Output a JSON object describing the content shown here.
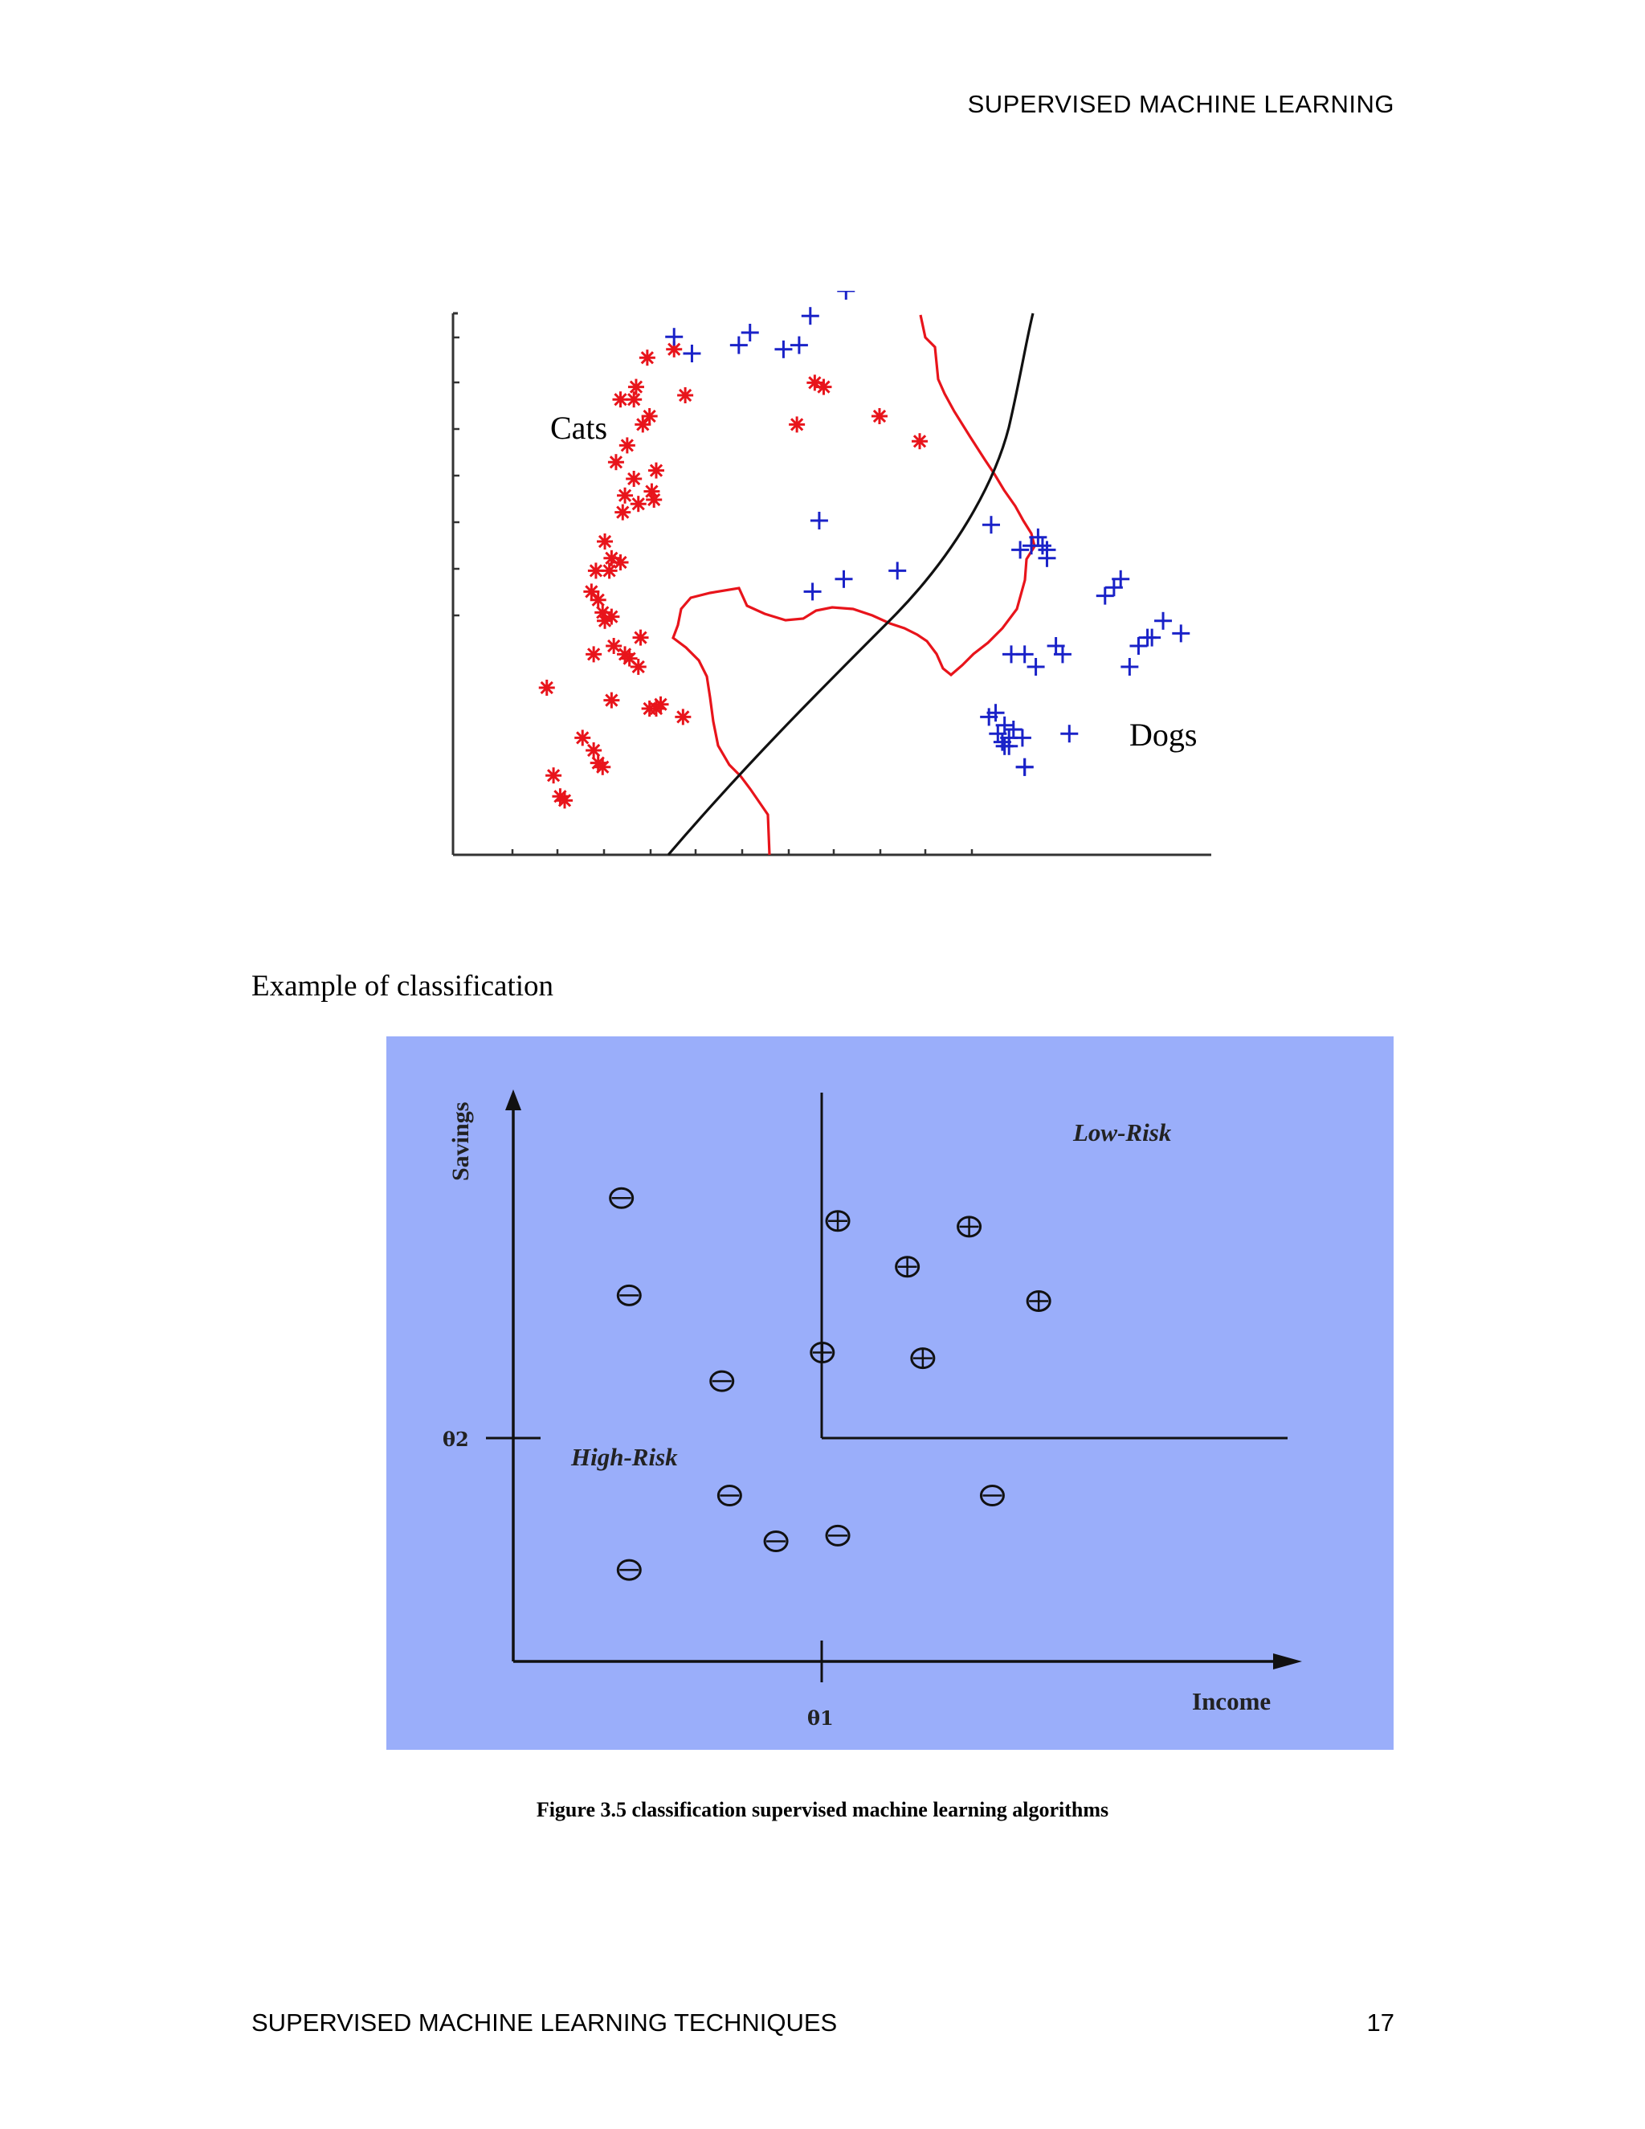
{
  "header": {
    "running_title": "SUPERVISED MACHINE LEARNING"
  },
  "figure1": {
    "label": "Example of classification",
    "chart_data": {
      "type": "scatter",
      "class_labels": [
        "Cats",
        "Dogs"
      ],
      "series": [
        {
          "name": "Cats",
          "marker": "asterisk",
          "color": "#e8141b",
          "points": [
            [
              45,
              19
            ],
            [
              65,
              22
            ],
            [
              67,
              21
            ],
            [
              48,
              14
            ],
            [
              50,
              13
            ],
            [
              63,
              25
            ],
            [
              71,
              37
            ],
            [
              42,
              40
            ],
            [
              63,
              48
            ],
            [
              79,
              47
            ],
            [
              103,
              33
            ],
            [
              58,
              28
            ],
            [
              93,
              36
            ],
            [
              91,
              35
            ],
            [
              88,
              35
            ],
            [
              83,
              45
            ],
            [
              77,
              48
            ],
            [
              84,
              52
            ],
            [
              72,
              50
            ],
            [
              71,
              57
            ],
            [
              68,
              56
            ],
            [
              65,
              61
            ],
            [
              67,
              58
            ],
            [
              62,
              63
            ],
            [
              64,
              68
            ],
            [
              70,
              68
            ],
            [
              68,
              75
            ],
            [
              75,
              70
            ],
            [
              71,
              71
            ],
            [
              76,
              82
            ],
            [
              83,
              84
            ],
            [
              90,
              85
            ],
            [
              77,
              86
            ],
            [
              89,
              87
            ],
            [
              81,
              90
            ],
            [
              91,
              92
            ],
            [
              73,
              94
            ],
            [
              78,
              98
            ],
            [
              85,
              103
            ],
            [
              88,
              105
            ],
            [
              75,
              109
            ],
            [
              81,
              109
            ],
            [
              82,
              112
            ],
            [
              87,
              119
            ],
            [
              99,
              121
            ],
            [
              104,
              110
            ],
            [
              154,
              103
            ],
            [
              162,
              113
            ],
            [
              166,
              112
            ],
            [
              191,
              105
            ],
            [
              209,
              99
            ]
          ]
        },
        {
          "name": "Dogs",
          "marker": "plus",
          "color": "#1a22c8",
          "points": [
            [
              107,
              120
            ],
            [
              99,
              124
            ],
            [
              115,
              143
            ],
            [
              128,
              122
            ],
            [
              133,
              125
            ],
            [
              148,
              121
            ],
            [
              155,
              122
            ],
            [
              160,
              129
            ],
            [
              187,
              142
            ],
            [
              176,
              135
            ],
            [
              164,
              80
            ],
            [
              161,
              63
            ],
            [
              175,
              66
            ],
            [
              199,
              68
            ],
            [
              241,
              79
            ],
            [
              254,
              73
            ],
            [
              264,
              74
            ],
            [
              266,
              73
            ],
            [
              259,
              74
            ],
            [
              262,
              76
            ],
            [
              266,
              71
            ],
            [
              299,
              66
            ],
            [
              296,
              64
            ],
            [
              292,
              62
            ],
            [
              318,
              56
            ],
            [
              311,
              52
            ],
            [
              303,
              45
            ],
            [
              256,
              48
            ],
            [
              250,
              48
            ],
            [
              261,
              45
            ],
            [
              273,
              48
            ],
            [
              313,
              52
            ],
            [
              307,
              50
            ],
            [
              326,
              53
            ],
            [
              244,
              29
            ],
            [
              255,
              28
            ],
            [
              251,
              30
            ],
            [
              247,
              31
            ],
            [
              246,
              27
            ],
            [
              247,
              26
            ],
            [
              249,
              26
            ],
            [
              249,
              28
            ],
            [
              240,
              33
            ],
            [
              243,
              34
            ],
            [
              256,
              21
            ],
            [
              256,
              21
            ],
            [
              270,
              50
            ],
            [
              276,
              29
            ]
          ]
        }
      ],
      "boundaries": [
        {
          "kind": "nonlinear",
          "color": "#e8141b"
        },
        {
          "kind": "smooth",
          "color": "#111111"
        }
      ]
    }
  },
  "figure2": {
    "chart_data": {
      "type": "scatter",
      "xlabel": "Income",
      "ylabel": "Savings",
      "x_threshold_label": "θ1",
      "y_threshold_label": "θ2",
      "regions": [
        "Low-Risk",
        "High-Risk"
      ],
      "background": "#9aaefa",
      "series": [
        {
          "name": "Low-Risk",
          "marker": "circled-plus",
          "points": [
            [
              0.42,
              0.77
            ],
            [
              0.59,
              0.76
            ],
            [
              0.51,
              0.69
            ],
            [
              0.68,
              0.63
            ],
            [
              0.4,
              0.54
            ],
            [
              0.53,
              0.53
            ]
          ]
        },
        {
          "name": "High-Risk",
          "marker": "circled-minus",
          "points": [
            [
              0.14,
              0.81
            ],
            [
              0.15,
              0.64
            ],
            [
              0.27,
              0.49
            ],
            [
              0.28,
              0.29
            ],
            [
              0.34,
              0.21
            ],
            [
              0.42,
              0.22
            ],
            [
              0.62,
              0.29
            ],
            [
              0.15,
              0.16
            ]
          ]
        }
      ]
    },
    "caption": "Figure 3.5 classification supervised machine learning algorithms"
  },
  "footer": {
    "left": "SUPERVISED MACHINE LEARNING TECHNIQUES",
    "page_number": "17"
  }
}
